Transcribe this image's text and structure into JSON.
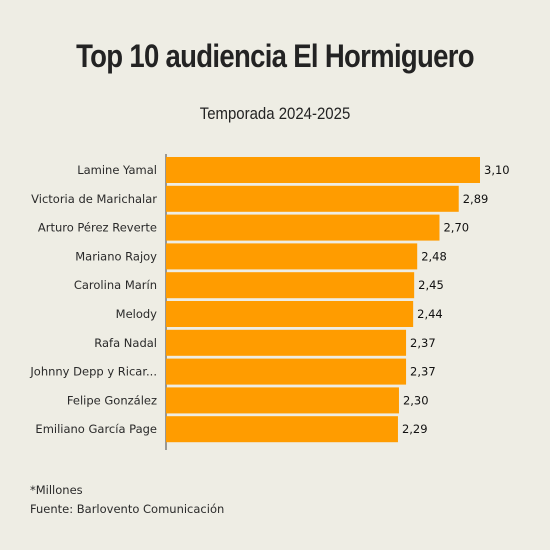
{
  "chart_data": {
    "type": "bar",
    "orientation": "horizontal",
    "title": "Top 10 audiencia El Hormiguero",
    "subtitle": "Temporada 2024-2025",
    "categories": [
      "Lamine Yamal",
      "Victoria de Marichalar",
      "Arturo Pérez Reverte",
      "Mariano Rajoy",
      "Carolina Marín",
      "Melody",
      "Rafa Nadal",
      "Johnny Depp y Ricar...",
      "Felipe González",
      "Emiliano García Page"
    ],
    "values": [
      3.1,
      2.89,
      2.7,
      2.48,
      2.45,
      2.44,
      2.37,
      2.37,
      2.3,
      2.29
    ],
    "value_labels": [
      "3,10",
      "2,89",
      "2,70",
      "2,48",
      "2,45",
      "2,44",
      "2,37",
      "2,37",
      "2,30",
      "2,29"
    ],
    "xlim": [
      0,
      3.1
    ],
    "grid": false,
    "bar_color": "#ff9c00",
    "background_color": "#eeede4"
  },
  "footnotes": {
    "units": "*Millones",
    "source": "Fuente: Barlovento Comunicación"
  }
}
